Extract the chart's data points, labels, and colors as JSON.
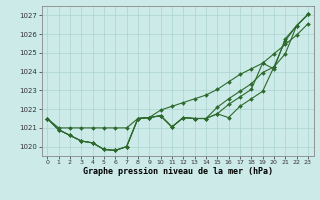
{
  "title": "Graphe pression niveau de la mer (hPa)",
  "xlabel_ticks": [
    0,
    1,
    2,
    3,
    4,
    5,
    6,
    7,
    8,
    9,
    10,
    11,
    12,
    13,
    14,
    15,
    16,
    17,
    18,
    19,
    20,
    21,
    22,
    23
  ],
  "ylim": [
    1019.5,
    1027.5
  ],
  "yticks": [
    1020,
    1021,
    1022,
    1023,
    1024,
    1025,
    1026,
    1027
  ],
  "xlim": [
    -0.5,
    23.5
  ],
  "bg_color": "#cceae8",
  "grid_color": "#aad4d0",
  "line_color": "#2d6a2d",
  "series": [
    [
      1021.5,
      1020.9,
      1020.6,
      1020.3,
      1020.2,
      1019.85,
      1019.8,
      1020.0,
      1021.5,
      1021.55,
      1021.65,
      1021.05,
      1021.55,
      1021.5,
      1021.5,
      1021.75,
      1021.55,
      1022.15,
      1022.55,
      1022.95,
      1024.25,
      1025.65,
      1026.45,
      1027.05
    ],
    [
      1021.5,
      1020.9,
      1020.6,
      1020.3,
      1020.2,
      1019.85,
      1019.8,
      1020.0,
      1021.5,
      1021.55,
      1021.65,
      1021.05,
      1021.55,
      1021.5,
      1021.5,
      1022.1,
      1022.55,
      1022.95,
      1023.35,
      1023.95,
      1024.25,
      1024.95,
      1026.45,
      1027.05
    ],
    [
      1021.5,
      1021.0,
      1021.0,
      1021.0,
      1021.0,
      1021.0,
      1021.0,
      1021.0,
      1021.5,
      1021.55,
      1021.95,
      1022.15,
      1022.35,
      1022.55,
      1022.75,
      1023.05,
      1023.45,
      1023.85,
      1024.15,
      1024.45,
      1024.95,
      1025.45,
      1025.95,
      1026.55
    ],
    [
      1021.5,
      1020.9,
      1020.6,
      1020.3,
      1020.2,
      1019.85,
      1019.8,
      1020.0,
      1021.5,
      1021.55,
      1021.65,
      1021.05,
      1021.55,
      1021.5,
      1021.5,
      1021.75,
      1022.25,
      1022.65,
      1023.05,
      1024.45,
      1024.15,
      1025.75,
      1026.45,
      1027.05
    ]
  ],
  "figsize": [
    3.2,
    2.0
  ],
  "dpi": 100
}
